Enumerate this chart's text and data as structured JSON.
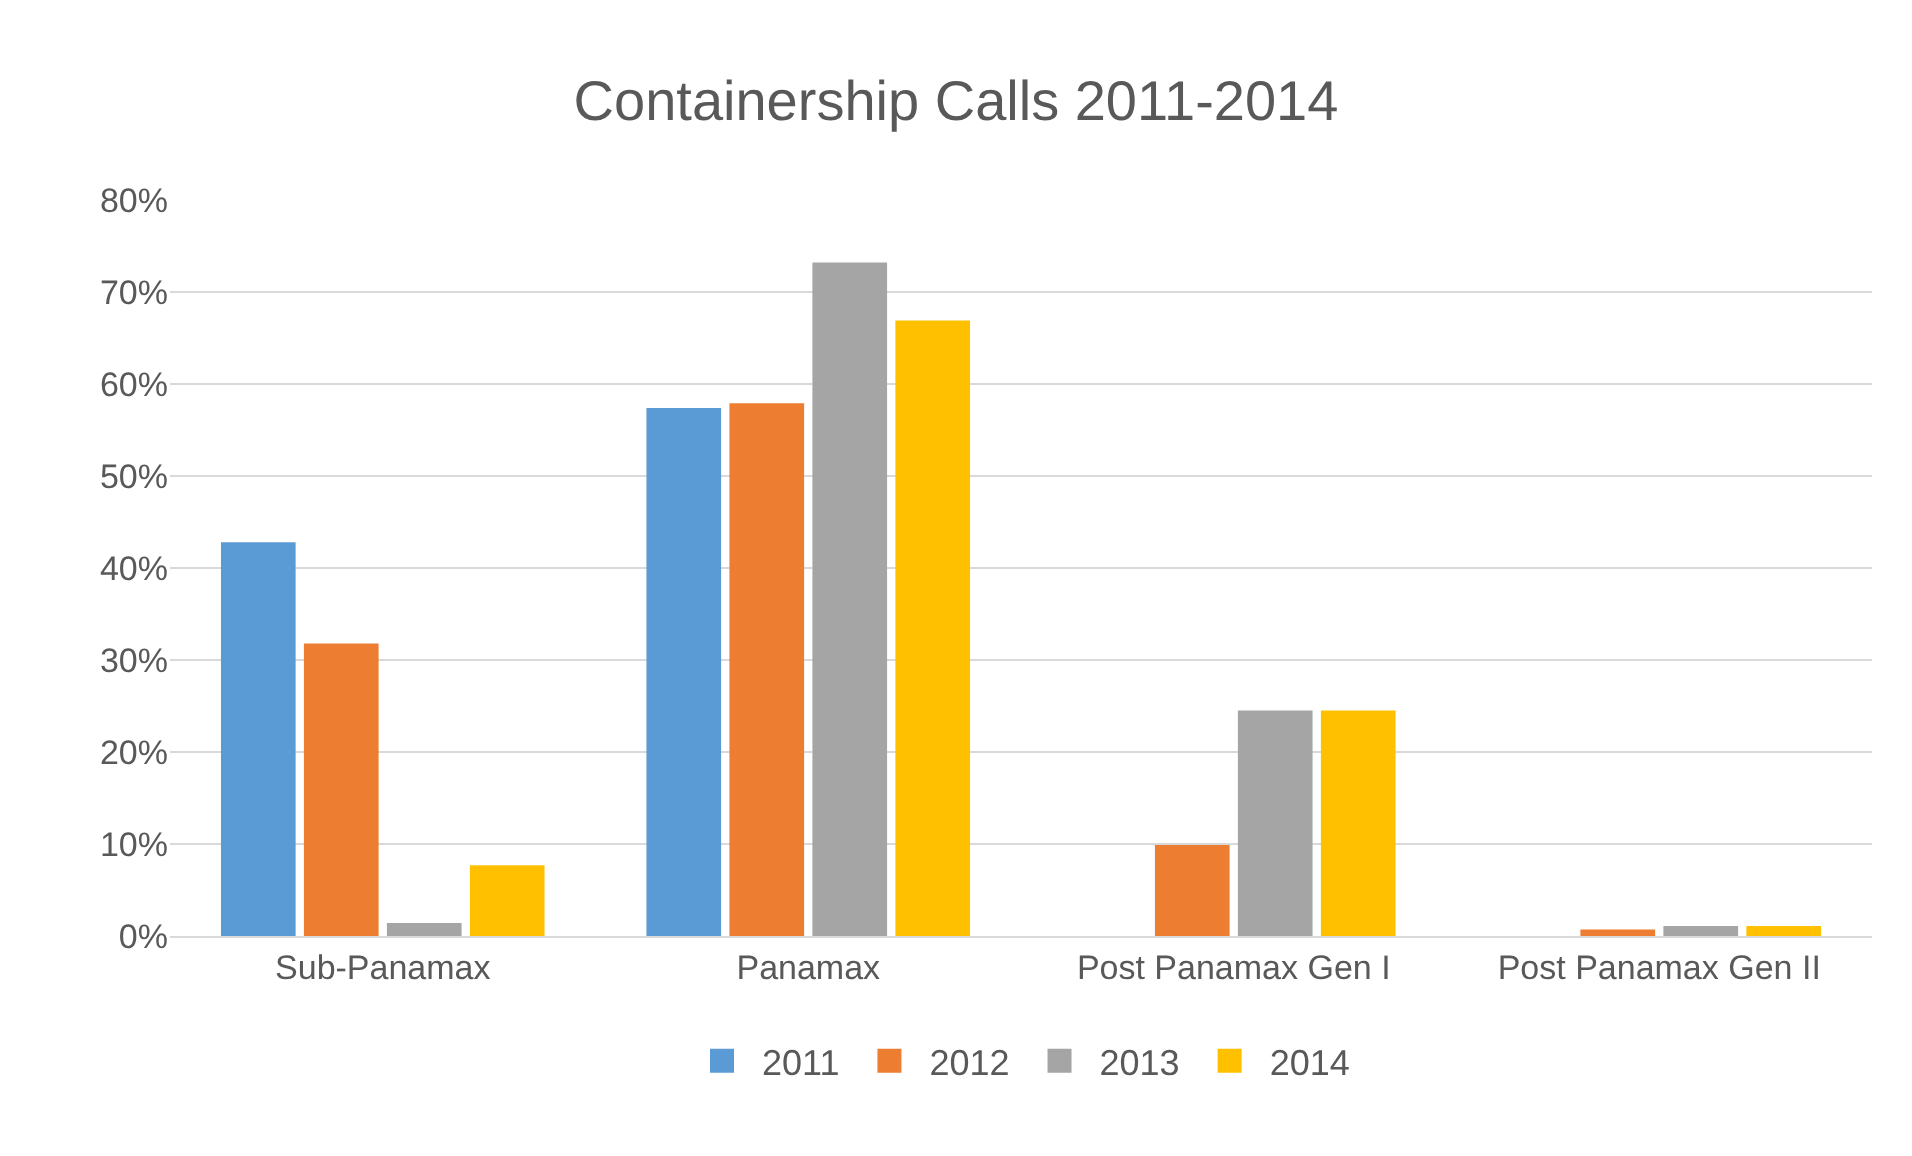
{
  "chart_data": {
    "type": "bar",
    "title": "Containership Calls 2011-2014",
    "categories": [
      "Sub-Panamax",
      "Panamax",
      "Post Panamax Gen I",
      "Post Panamax Gen II"
    ],
    "series": [
      {
        "name": "2011",
        "color": "#5b9bd5",
        "values": [
          42.8,
          57.4,
          0,
          0
        ]
      },
      {
        "name": "2012",
        "color": "#ed7d31",
        "values": [
          31.8,
          57.9,
          9.9,
          0.7
        ]
      },
      {
        "name": "2013",
        "color": "#a5a5a5",
        "values": [
          1.4,
          73.2,
          24.5,
          1.1
        ]
      },
      {
        "name": "2014",
        "color": "#ffc000",
        "values": [
          7.7,
          66.9,
          24.5,
          1.1
        ]
      }
    ],
    "ylim": [
      0,
      80
    ],
    "yticks": [
      {
        "value": 0,
        "label": "0%"
      },
      {
        "value": 10,
        "label": "10%"
      },
      {
        "value": 20,
        "label": "20%"
      },
      {
        "value": 30,
        "label": "30%"
      },
      {
        "value": 40,
        "label": "40%"
      },
      {
        "value": 50,
        "label": "50%"
      },
      {
        "value": 60,
        "label": "60%"
      },
      {
        "value": 70,
        "label": "70%"
      },
      {
        "value": 80,
        "label": "80%"
      }
    ],
    "grid": "y",
    "legend": "bottom"
  }
}
